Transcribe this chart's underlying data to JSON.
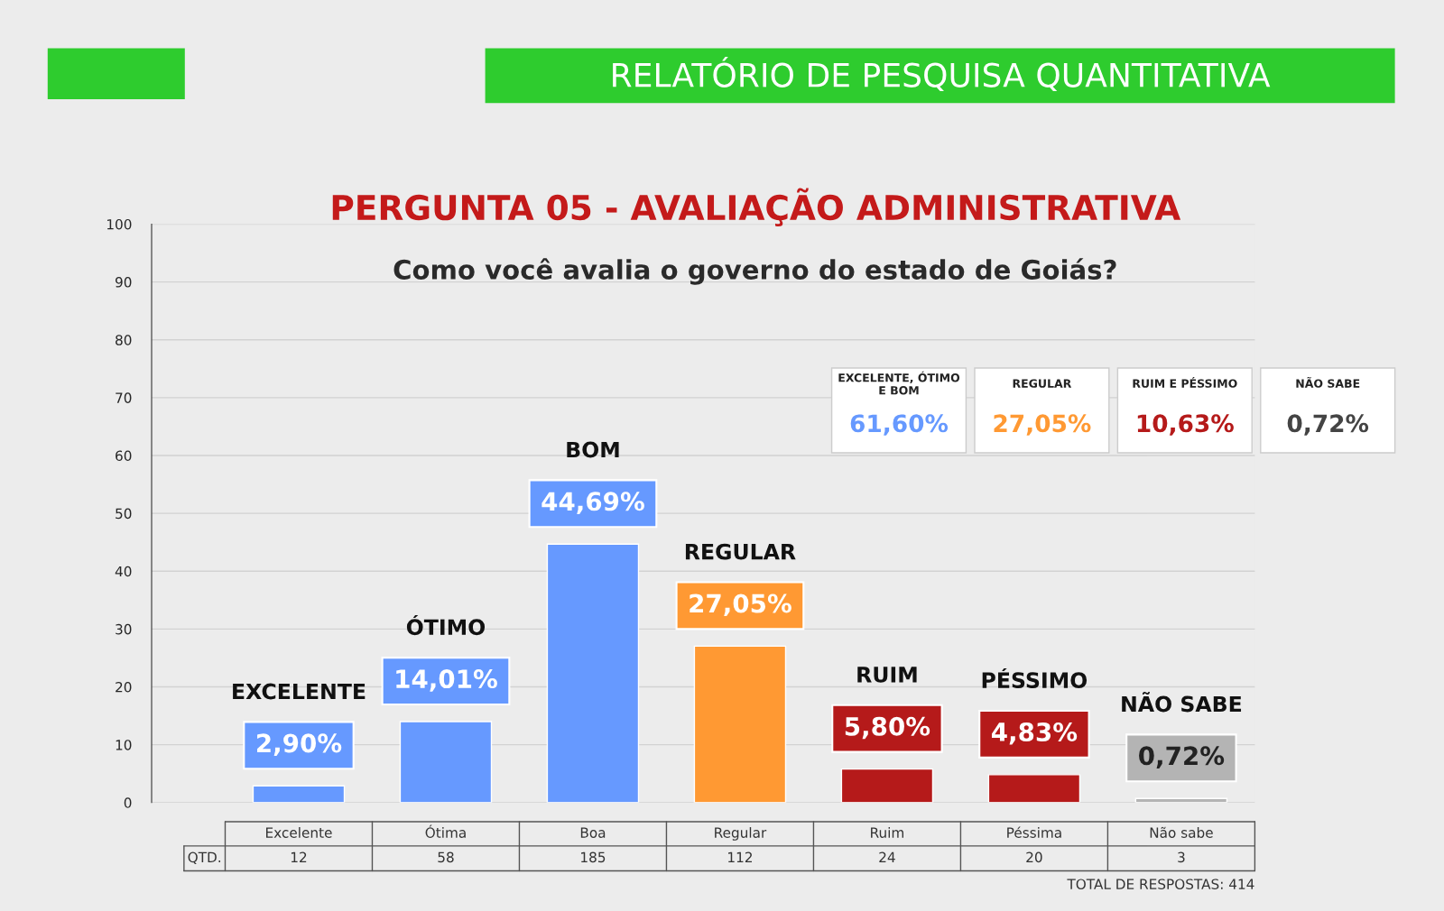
{
  "chart_data": {
    "type": "bar",
    "title": "PERGUNTA 05 - AVALIAÇÃO ADMINISTRATIVA",
    "subtitle": "Como você avalia o governo do estado de Goiás?",
    "categories": [
      "Excelente",
      "Ótima",
      "Boa",
      "Regular",
      "Ruim",
      "Péssima",
      "Não sabe"
    ],
    "values": [
      2.9,
      14.01,
      44.69,
      27.05,
      5.8,
      4.83,
      0.72
    ],
    "colors": [
      "#6699ff",
      "#6699ff",
      "#6699ff",
      "#ff9933",
      "#b51a1a",
      "#b51a1a",
      "#b4b4b4"
    ],
    "value_labels": [
      "2,90%",
      "14,01%",
      "44,69%",
      "27,05%",
      "5,80%",
      "4,83%",
      "0,72%"
    ],
    "ylim": [
      0,
      100
    ],
    "yticks": [
      0,
      10,
      20,
      30,
      40,
      50,
      60,
      70,
      80,
      90,
      100
    ],
    "grid": "y",
    "annotations": [
      "RELATÓRIO DE PESQUISA QUANTITATIVA",
      "QTD.",
      "TOTAL DE RESPOSTAS: 414",
      "EXCELENTE, ÓTIMO\nE BOM",
      "61,60%",
      "REGULAR",
      "27,05%",
      "RUIM E PÉSSIMO",
      "10,63%",
      "NÃO SABE",
      "0,72%",
      "EXCELENTE",
      "ÓTIMO",
      "BOM",
      "REGULAR",
      "RUIM",
      "PÉSSIMO",
      "NÃO SABE",
      "12",
      "58",
      "185",
      "112",
      "24",
      "20",
      "3"
    ]
  }
}
